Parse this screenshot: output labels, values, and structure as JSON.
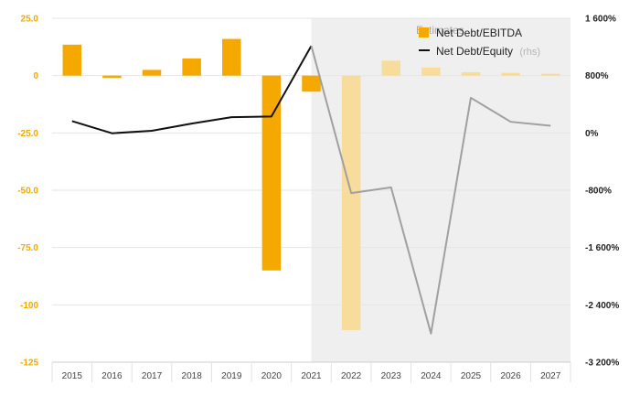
{
  "chart_data": {
    "type": "bar+line",
    "categories": [
      "2015",
      "2016",
      "2017",
      "2018",
      "2019",
      "2020",
      "2021",
      "2022",
      "2023",
      "2024",
      "2025",
      "2026",
      "2027"
    ],
    "estimate_from": "2022",
    "estimates_label": "Estimates",
    "series": [
      {
        "name": "Net Debt/EBITDA",
        "type": "bar",
        "axis": "left",
        "color": "#f5a800",
        "estimate_color": "#f7dc9c",
        "values": [
          13.5,
          -1,
          2.5,
          7.5,
          16,
          -85,
          -7,
          -111,
          6.5,
          3.5,
          1.5,
          1.2,
          0.8
        ]
      },
      {
        "name": "Net Debt/Equity",
        "name_suffix": "(rhs)",
        "type": "line",
        "axis": "right",
        "color": "#111111",
        "estimate_color": "#a0a0a0",
        "values": [
          165,
          -5,
          30,
          130,
          220,
          230,
          1215,
          -840,
          -760,
          -2800,
          490,
          155,
          100
        ]
      }
    ],
    "y_left": {
      "min": -125,
      "max": 25,
      "ticks": [
        25,
        0,
        -25,
        -50,
        -75,
        -100,
        -125
      ],
      "tick_labels": [
        "25.0",
        "0",
        "-25.0",
        "-50.0",
        "-75.0",
        "-100",
        "-125"
      ]
    },
    "y_right": {
      "min": -3200,
      "max": 1600,
      "ticks": [
        1600,
        800,
        0,
        -800,
        -1600,
        -2400,
        -3200
      ],
      "tick_labels": [
        "1 600%",
        "800%",
        "0%",
        "-800%",
        "-1 600%",
        "-2 400%",
        "-3 200%"
      ]
    },
    "grid": true,
    "legend_position": "top-right"
  }
}
